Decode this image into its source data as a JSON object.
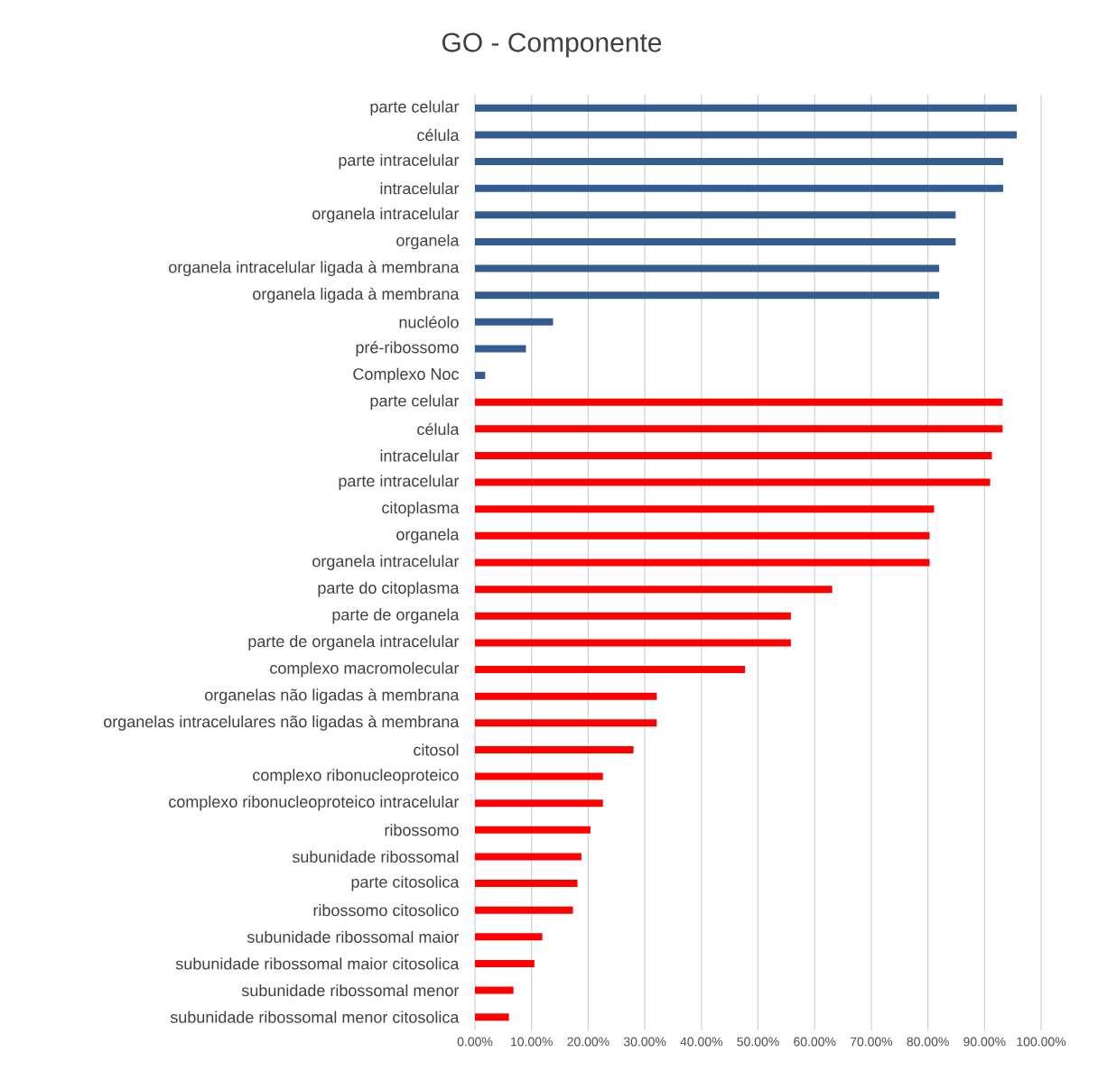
{
  "chart_data": {
    "type": "bar",
    "orientation": "horizontal",
    "title": "GO - Componente",
    "categories": [
      "parte celular",
      "célula",
      "parte intracelular",
      "intracelular",
      "organela intracelular",
      "organela",
      "organela intracelular ligada à membrana",
      "organela ligada à membrana",
      "nucléolo",
      "pré-ribossomo",
      "Complexo Noc",
      "parte celular",
      "célula",
      "intracelular",
      "parte intracelular",
      "citoplasma",
      "organela",
      "organela intracelular",
      "parte do citoplasma",
      "parte de organela",
      "parte de organela intracelular",
      "complexo macromolecular",
      "organelas não ligadas à membrana",
      "organelas intracelulares não ligadas à membrana",
      "citosol",
      "complexo ribonucleoproteico",
      "complexo ribonucleoproteico intracelular",
      "ribossomo",
      "subunidade ribossomal",
      "parte citosolica",
      "ribossomo citosolico",
      "subunidade ribossomal maior",
      "subunidade ribossomal maior citosolica",
      "subunidade ribossomal menor",
      "subunidade ribossomal menor citosolica"
    ],
    "values": [
      95.7,
      95.7,
      93.3,
      93.3,
      84.9,
      84.9,
      82.0,
      82.0,
      13.8,
      9.0,
      1.8,
      93.2,
      93.2,
      91.3,
      91.0,
      81.1,
      80.3,
      80.3,
      63.1,
      55.8,
      55.8,
      47.7,
      32.1,
      32.1,
      28.0,
      22.6,
      22.6,
      20.4,
      18.8,
      18.1,
      17.3,
      11.9,
      10.5,
      6.8,
      6.0
    ],
    "colors": [
      "#335c91",
      "#335c91",
      "#335c91",
      "#335c91",
      "#335c91",
      "#335c91",
      "#335c91",
      "#335c91",
      "#335c91",
      "#335c91",
      "#335c91",
      "#ff0000",
      "#ff0000",
      "#ff0000",
      "#ff0000",
      "#ff0000",
      "#ff0000",
      "#ff0000",
      "#ff0000",
      "#ff0000",
      "#ff0000",
      "#ff0000",
      "#ff0000",
      "#ff0000",
      "#ff0000",
      "#ff0000",
      "#ff0000",
      "#ff0000",
      "#ff0000",
      "#ff0000",
      "#ff0000",
      "#ff0000",
      "#ff0000",
      "#ff0000",
      "#ff0000"
    ],
    "xlim": [
      0,
      100
    ],
    "xticks": [
      {
        "value": 0,
        "label": "0.00%"
      },
      {
        "value": 10,
        "label": "10.00%"
      },
      {
        "value": 20,
        "label": "20.00%"
      },
      {
        "value": 30,
        "label": "30.00%"
      },
      {
        "value": 40,
        "label": "40.00%"
      },
      {
        "value": 50,
        "label": "50.00%"
      },
      {
        "value": 60,
        "label": "60.00%"
      },
      {
        "value": 70,
        "label": "70.00%"
      },
      {
        "value": 80,
        "label": "80.00%"
      },
      {
        "value": 90,
        "label": "90.00%"
      },
      {
        "value": 100,
        "label": "100.00%"
      }
    ],
    "grid": "x"
  }
}
